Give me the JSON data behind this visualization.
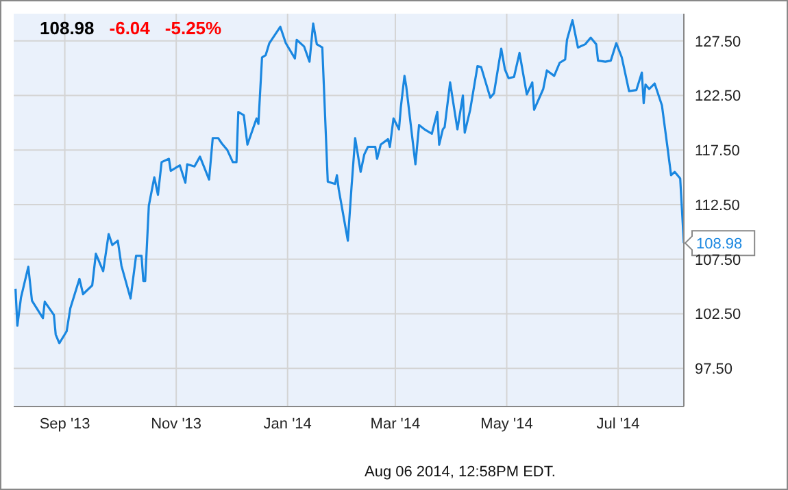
{
  "chart_data": {
    "type": "line",
    "grid": true,
    "legend": false,
    "marker": "none",
    "line_style": "solid",
    "x": [
      "2013-08-05",
      "2013-08-06",
      "2013-08-08",
      "2013-08-12",
      "2013-08-14",
      "2013-08-20",
      "2013-08-21",
      "2013-08-26",
      "2013-08-27",
      "2013-08-29",
      "2013-09-02",
      "2013-09-04",
      "2013-09-09",
      "2013-09-11",
      "2013-09-16",
      "2013-09-18",
      "2013-09-22",
      "2013-09-25",
      "2013-09-27",
      "2013-09-30",
      "2013-10-02",
      "2013-10-07",
      "2013-10-10",
      "2013-10-13",
      "2013-10-14",
      "2013-10-15",
      "2013-10-17",
      "2013-10-20",
      "2013-10-22",
      "2013-10-24",
      "2013-10-28",
      "2013-10-29",
      "2013-11-03",
      "2013-11-06",
      "2013-11-07",
      "2013-11-11",
      "2013-11-14",
      "2013-11-19",
      "2013-11-21",
      "2013-11-24",
      "2013-11-26",
      "2013-11-29",
      "2013-12-02",
      "2013-12-04",
      "2013-12-05",
      "2013-12-08",
      "2013-12-10",
      "2013-12-15",
      "2013-12-16",
      "2013-12-18",
      "2013-12-20",
      "2013-12-22",
      "2013-12-28",
      "2013-12-31",
      "2014-01-05",
      "2014-01-06",
      "2014-01-10",
      "2014-01-13",
      "2014-01-15",
      "2014-01-17",
      "2014-01-20",
      "2014-01-23",
      "2014-01-27",
      "2014-01-28",
      "2014-01-29",
      "2014-02-03",
      "2014-02-05",
      "2014-02-07",
      "2014-02-10",
      "2014-02-12",
      "2014-02-14",
      "2014-02-18",
      "2014-02-19",
      "2014-02-21",
      "2014-02-25",
      "2014-02-26",
      "2014-02-28",
      "2014-03-03",
      "2014-03-04",
      "2014-03-06",
      "2014-03-07",
      "2014-03-12",
      "2014-03-14",
      "2014-03-17",
      "2014-03-21",
      "2014-03-24",
      "2014-03-25",
      "2014-03-27",
      "2014-03-28",
      "2014-03-31",
      "2014-04-04",
      "2014-04-07",
      "2014-04-08",
      "2014-04-11",
      "2014-04-15",
      "2014-04-17",
      "2014-04-22",
      "2014-04-24",
      "2014-04-28",
      "2014-04-30",
      "2014-05-02",
      "2014-05-05",
      "2014-05-08",
      "2014-05-12",
      "2014-05-15",
      "2014-05-16",
      "2014-05-21",
      "2014-05-23",
      "2014-05-27",
      "2014-05-30",
      "2014-06-02",
      "2014-06-03",
      "2014-06-06",
      "2014-06-09",
      "2014-06-13",
      "2014-06-16",
      "2014-06-19",
      "2014-06-20",
      "2014-06-24",
      "2014-06-27",
      "2014-06-30",
      "2014-07-03",
      "2014-07-07",
      "2014-07-11",
      "2014-07-14",
      "2014-07-15",
      "2014-07-16",
      "2014-07-18",
      "2014-07-21",
      "2014-07-25",
      "2014-07-28",
      "2014-07-30",
      "2014-08-01",
      "2014-08-04",
      "2014-08-06"
    ],
    "series": [
      {
        "color": "#1a87e0",
        "values": [
          104.8,
          101.4,
          104.0,
          106.8,
          103.7,
          102.1,
          103.6,
          102.4,
          100.6,
          99.8,
          100.9,
          103.0,
          105.7,
          104.3,
          105.1,
          108.0,
          106.4,
          109.8,
          108.8,
          109.2,
          106.9,
          103.9,
          107.8,
          107.8,
          105.5,
          105.5,
          112.4,
          115.0,
          113.4,
          116.4,
          116.7,
          115.6,
          116.1,
          114.5,
          116.2,
          116.0,
          116.9,
          114.8,
          118.6,
          118.6,
          118.1,
          117.5,
          116.4,
          116.4,
          121.0,
          120.7,
          118.0,
          120.4,
          119.9,
          126.0,
          126.2,
          127.3,
          128.8,
          127.3,
          125.9,
          127.6,
          127.0,
          125.6,
          129.1,
          127.2,
          126.9,
          114.6,
          114.4,
          115.2,
          113.9,
          109.2,
          114.1,
          118.6,
          115.5,
          117.1,
          117.8,
          117.8,
          116.7,
          118.0,
          118.5,
          117.8,
          120.4,
          119.4,
          121.4,
          124.3,
          123.3,
          116.2,
          119.8,
          119.4,
          119.0,
          121.0,
          118.0,
          119.4,
          119.6,
          123.7,
          119.4,
          122.5,
          119.1,
          121.2,
          125.2,
          125.1,
          122.3,
          122.7,
          126.8,
          124.9,
          124.1,
          124.2,
          126.4,
          122.6,
          123.7,
          121.2,
          123.1,
          124.8,
          124.3,
          125.5,
          125.8,
          127.6,
          129.4,
          126.9,
          127.2,
          127.8,
          127.2,
          125.7,
          125.6,
          125.7,
          127.3,
          126.0,
          122.9,
          123.0,
          124.6,
          121.8,
          123.5,
          123.1,
          123.6,
          121.6,
          117.8,
          115.2,
          115.5,
          114.9,
          108.98
        ]
      }
    ],
    "xlim": [
      "2013-08-04",
      "2014-08-06"
    ],
    "xticks": [
      {
        "value": "2013-09-01",
        "label": "Sep '13"
      },
      {
        "value": "2013-11-01",
        "label": "Nov '13"
      },
      {
        "value": "2014-01-01",
        "label": "Jan '14"
      },
      {
        "value": "2014-03-01",
        "label": "Mar '14"
      },
      {
        "value": "2014-05-01",
        "label": "May '14"
      },
      {
        "value": "2014-07-01",
        "label": "Jul '14"
      }
    ],
    "ylim": [
      94,
      130
    ],
    "yticks": [
      {
        "value": 97.5,
        "label": "97.50"
      },
      {
        "value": 102.5,
        "label": "102.50"
      },
      {
        "value": 107.5,
        "label": "107.50"
      },
      {
        "value": 112.5,
        "label": "112.50"
      },
      {
        "value": 117.5,
        "label": "117.50"
      },
      {
        "value": 122.5,
        "label": "122.50"
      },
      {
        "value": 127.5,
        "label": "127.50"
      }
    ],
    "annotations": [
      "108.98",
      "-6.04",
      "-5.25%",
      {
        "text": "108.98",
        "x": "2014-08-06",
        "y": 108.98
      },
      "Aug 06 2014, 12:58PM EDT."
    ]
  }
}
